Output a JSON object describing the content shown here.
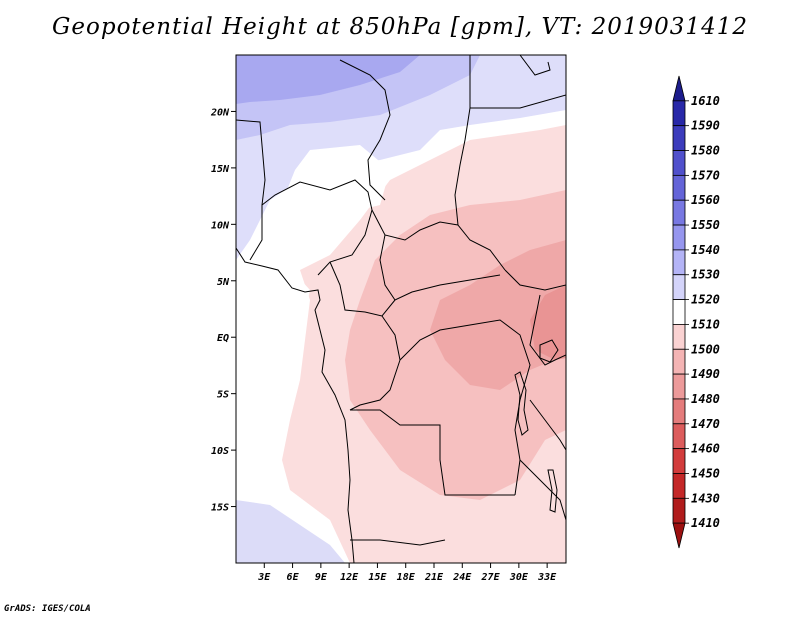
{
  "title": "Geopotential Height at 850hPa [gpm], VT: 2019031412",
  "credit": "GrADS: IGES/COLA",
  "map": {
    "lat_labels": [
      "20N",
      "15N",
      "10N",
      "5N",
      "EQ",
      "5S",
      "10S",
      "15S"
    ],
    "lat_values": [
      20,
      15,
      10,
      5,
      0,
      -5,
      -10,
      -15
    ],
    "lon_labels": [
      "3E",
      "6E",
      "9E",
      "12E",
      "15E",
      "18E",
      "21E",
      "24E",
      "27E",
      "30E",
      "33E"
    ],
    "lon_values": [
      3,
      6,
      9,
      12,
      15,
      18,
      21,
      24,
      27,
      30,
      33
    ],
    "lon_range": [
      0,
      35
    ],
    "lat_range": [
      -20,
      25
    ]
  },
  "colorbar": {
    "labels": [
      "1610",
      "1590",
      "1580",
      "1570",
      "1560",
      "1550",
      "1540",
      "1530",
      "1520",
      "1510",
      "1500",
      "1490",
      "1480",
      "1470",
      "1460",
      "1450",
      "1430",
      "1410"
    ],
    "colors": [
      "#1c1c8c",
      "#2828a8",
      "#3c3cbc",
      "#5050cc",
      "#6464d8",
      "#7878e2",
      "#9696ee",
      "#b4b4f6",
      "#d4d4fa",
      "#ffffff",
      "#fad2d2",
      "#f4b4b4",
      "#ec9a9a",
      "#e47c7c",
      "#dc5c5c",
      "#d23c3c",
      "#c42828",
      "#b01c1c",
      "#9c1010"
    ]
  }
}
